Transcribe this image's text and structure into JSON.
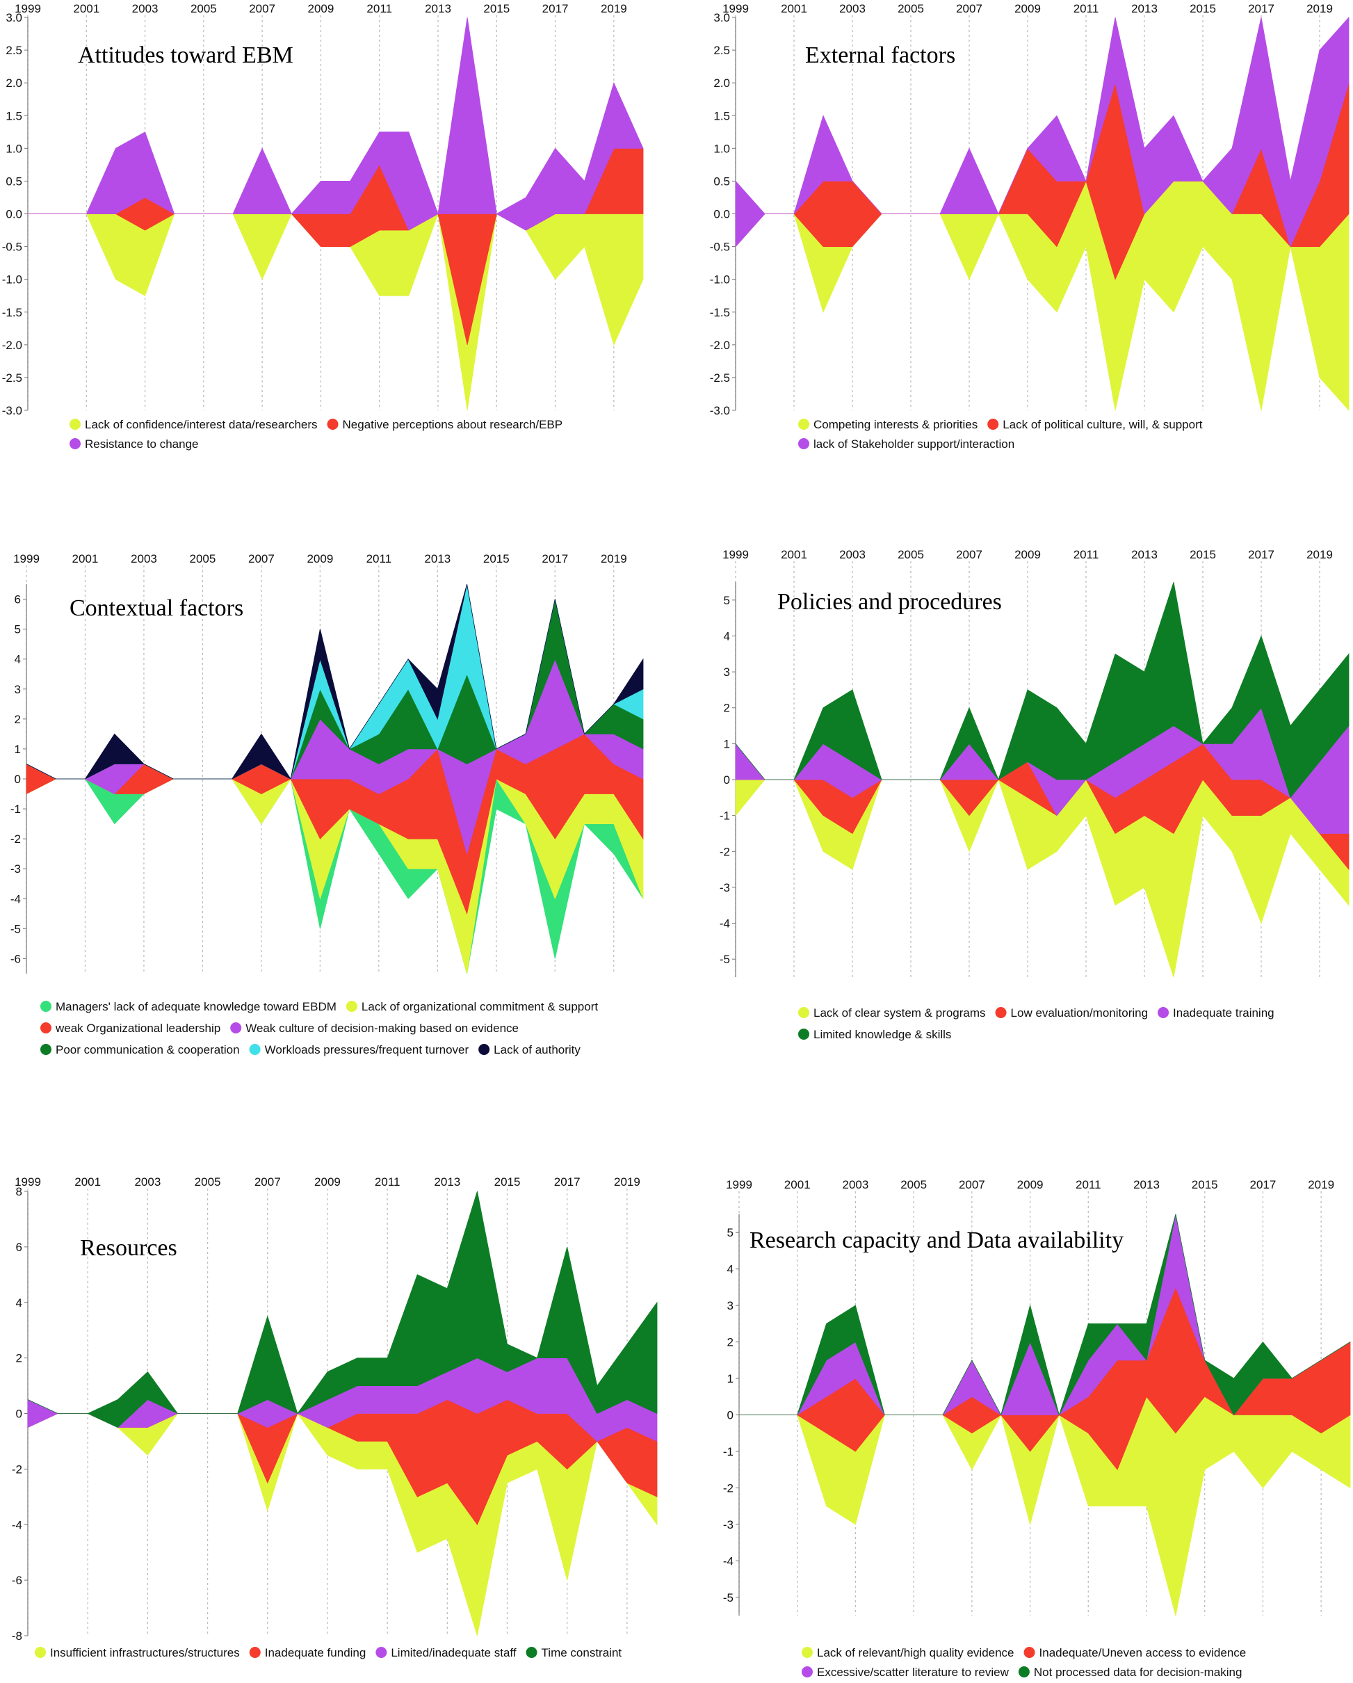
{
  "chart_data": [
    {
      "type": "area",
      "title": "Attitudes toward EBM",
      "x": [
        1999,
        2000,
        2001,
        2002,
        2003,
        2004,
        2005,
        2006,
        2007,
        2008,
        2009,
        2010,
        2011,
        2012,
        2013,
        2014,
        2015,
        2016,
        2017,
        2018,
        2019,
        2020
      ],
      "year_labels": [
        "1999",
        "2001",
        "2003",
        "2005",
        "2007",
        "2009",
        "2011",
        "2013",
        "2015",
        "2017",
        "2019"
      ],
      "ylim": [
        -3,
        3
      ],
      "y_ticks": [
        "3.0",
        "2.5",
        "2.0",
        "1.5",
        "1.0",
        "0.5",
        "0.0",
        "-0.5",
        "-1.0",
        "-1.5",
        "-2.0",
        "-2.5",
        "-3.0"
      ],
      "series": [
        {
          "name": "Lack of confidence/interest data/researchers",
          "color": "#dff53a",
          "values": [
            0,
            0,
            0,
            1,
            1,
            0,
            0,
            0,
            1,
            0,
            0,
            0,
            1,
            1,
            0,
            1,
            0,
            0,
            1,
            0.5,
            2,
            1
          ]
        },
        {
          "name": "Negative perceptions about research/EBP",
          "color": "#f43b2c",
          "values": [
            0,
            0,
            0,
            0,
            0.5,
            0,
            0,
            0,
            0,
            0,
            0.5,
            0.5,
            1,
            0,
            0,
            2,
            0,
            0,
            0,
            0,
            1,
            1
          ]
        },
        {
          "name": "Resistance to change",
          "color": "#b54ce8",
          "values": [
            0,
            0,
            0,
            1,
            1,
            0,
            0,
            0,
            1,
            0,
            0.5,
            0.5,
            0.5,
            1.5,
            0,
            3,
            0,
            0.5,
            1,
            0.5,
            1,
            0
          ]
        }
      ]
    },
    {
      "type": "area",
      "title": "External factors",
      "x": [
        1999,
        2000,
        2001,
        2002,
        2003,
        2004,
        2005,
        2006,
        2007,
        2008,
        2009,
        2010,
        2011,
        2012,
        2013,
        2014,
        2015,
        2016,
        2017,
        2018,
        2019,
        2020
      ],
      "year_labels": [
        "1999",
        "2001",
        "2003",
        "2005",
        "2007",
        "2009",
        "2011",
        "2013",
        "2015",
        "2017",
        "2019"
      ],
      "ylim": [
        -3,
        3
      ],
      "y_ticks": [
        "3.0",
        "2.5",
        "2.0",
        "1.5",
        "1.0",
        "0.5",
        "0.0",
        "-0.5",
        "-1.0",
        "-1.5",
        "-2.0",
        "-2.5",
        "-3.0"
      ],
      "series": [
        {
          "name": "Competing interests & priorities",
          "color": "#dff53a",
          "values": [
            0,
            0,
            0,
            1,
            0,
            0,
            0,
            0,
            1,
            0,
            1,
            1,
            1,
            2,
            1,
            2,
            1,
            1,
            3,
            0,
            2,
            3
          ]
        },
        {
          "name": "Lack of political culture, will, & support",
          "color": "#f43b2c",
          "values": [
            0,
            0,
            0,
            1,
            1,
            0,
            0,
            0,
            0,
            0,
            1,
            1,
            0,
            3,
            0,
            0,
            0,
            0,
            1,
            0,
            1,
            2
          ]
        },
        {
          "name": "lack of Stakeholder support/interaction",
          "color": "#b54ce8",
          "values": [
            1,
            0,
            0,
            1,
            0,
            0,
            0,
            0,
            1,
            0,
            0,
            1,
            0,
            1,
            1,
            1,
            0,
            1,
            2,
            1,
            2,
            1
          ]
        }
      ]
    },
    {
      "type": "area",
      "title": "Contextual factors",
      "x": [
        1999,
        2000,
        2001,
        2002,
        2003,
        2004,
        2005,
        2006,
        2007,
        2008,
        2009,
        2010,
        2011,
        2012,
        2013,
        2014,
        2015,
        2016,
        2017,
        2018,
        2019,
        2020
      ],
      "year_labels": [
        "1999",
        "2001",
        "2003",
        "2005",
        "2007",
        "2009",
        "2011",
        "2013",
        "2015",
        "2017",
        "2019"
      ],
      "ylim": [
        -6.5,
        6.5
      ],
      "y_ticks": [
        "6",
        "5",
        "4",
        "3",
        "2",
        "1",
        "0",
        "-1",
        "-2",
        "-3",
        "-4",
        "-5",
        "-6"
      ],
      "series": [
        {
          "name": "Managers' lack of adequate knowledge toward EBDM",
          "color": "#33e07a",
          "values": [
            0,
            0,
            0,
            1,
            0,
            0,
            0,
            0,
            0,
            0,
            1,
            0,
            1,
            1,
            0,
            0,
            1,
            0,
            2,
            0,
            1,
            0
          ]
        },
        {
          "name": "Lack of organizational commitment & support",
          "color": "#dff53a",
          "values": [
            0,
            0,
            0,
            0,
            0,
            0,
            0,
            0,
            1,
            0,
            2,
            0,
            0,
            1,
            1,
            2,
            0,
            1,
            2,
            1,
            1,
            2
          ]
        },
        {
          "name": "weak Organizational leadership",
          "color": "#f43b2c",
          "values": [
            1,
            0,
            0,
            0,
            1,
            0,
            0,
            0,
            1,
            0,
            2,
            1,
            1,
            2,
            3,
            2,
            1,
            1,
            3,
            2,
            1,
            2
          ]
        },
        {
          "name": "Weak culture of decision-making based on evidence",
          "color": "#b54ce8",
          "values": [
            0,
            0,
            0,
            1,
            0,
            0,
            0,
            0,
            0,
            0,
            2,
            1,
            1,
            1,
            0,
            3,
            0,
            1,
            3,
            0,
            1,
            1
          ]
        },
        {
          "name": "Poor communication & cooperation",
          "color": "#0c7d25",
          "values": [
            0,
            0,
            0,
            0,
            0,
            0,
            0,
            0,
            0,
            0,
            1,
            0,
            1,
            2,
            0,
            3,
            0,
            0,
            2,
            0,
            1,
            1
          ]
        },
        {
          "name": "Workloads pressures/frequent turnover",
          "color": "#3fe0e8",
          "values": [
            0,
            0,
            0,
            0,
            0,
            0,
            0,
            0,
            0,
            0,
            1,
            0,
            1,
            1,
            1,
            3,
            0,
            0,
            0,
            0,
            0,
            1
          ]
        },
        {
          "name": "Lack of authority",
          "color": "#0b0c3a",
          "values": [
            0,
            0,
            0,
            1,
            0,
            0,
            0,
            0,
            1,
            0,
            1,
            0,
            0,
            0,
            1,
            0,
            0,
            0,
            0,
            0,
            0,
            1
          ]
        }
      ]
    },
    {
      "type": "area",
      "title": "Policies and procedures",
      "x": [
        1999,
        2000,
        2001,
        2002,
        2003,
        2004,
        2005,
        2006,
        2007,
        2008,
        2009,
        2010,
        2011,
        2012,
        2013,
        2014,
        2015,
        2016,
        2017,
        2018,
        2019,
        2020
      ],
      "year_labels": [
        "1999",
        "2001",
        "2003",
        "2005",
        "2007",
        "2009",
        "2011",
        "2013",
        "2015",
        "2017",
        "2019"
      ],
      "ylim": [
        -5.5,
        5.5
      ],
      "y_ticks": [
        "5",
        "4",
        "3",
        "2",
        "1",
        "0",
        "-1",
        "-2",
        "-3",
        "-4",
        "-5"
      ],
      "series": [
        {
          "name": "Lack of clear system & programs",
          "color": "#dff53a",
          "values": [
            1,
            0,
            0,
            1,
            1,
            0,
            0,
            0,
            1,
            0,
            2,
            1,
            1,
            2,
            2,
            4,
            1,
            1,
            3,
            1,
            1,
            1
          ]
        },
        {
          "name": "Low evaluation/monitoring",
          "color": "#f43b2c",
          "values": [
            0,
            0,
            0,
            1,
            1,
            0,
            0,
            0,
            1,
            0,
            1,
            0,
            0,
            1,
            1,
            2,
            1,
            1,
            1,
            0,
            0,
            1
          ]
        },
        {
          "name": "Inadequate training",
          "color": "#b54ce8",
          "values": [
            1,
            0,
            0,
            1,
            1,
            0,
            0,
            0,
            1,
            0,
            0,
            1,
            0,
            1,
            1,
            1,
            0,
            1,
            2,
            0,
            2,
            3
          ]
        },
        {
          "name": "Limited knowledge & skills",
          "color": "#0c7d25",
          "values": [
            0,
            0,
            0,
            1,
            2,
            0,
            0,
            0,
            1,
            0,
            2,
            2,
            1,
            3,
            2,
            4,
            0,
            1,
            2,
            2,
            2,
            2
          ]
        }
      ]
    },
    {
      "type": "area",
      "title": "Resources",
      "x": [
        1999,
        2000,
        2001,
        2002,
        2003,
        2004,
        2005,
        2006,
        2007,
        2008,
        2009,
        2010,
        2011,
        2012,
        2013,
        2014,
        2015,
        2016,
        2017,
        2018,
        2019,
        2020
      ],
      "year_labels": [
        "1999",
        "2001",
        "2003",
        "2005",
        "2007",
        "2009",
        "2011",
        "2013",
        "2015",
        "2017",
        "2019"
      ],
      "ylim": [
        -8,
        8
      ],
      "y_ticks": [
        "8",
        "6",
        "4",
        "2",
        "0",
        "-2",
        "-4",
        "-6",
        "-8"
      ],
      "series": [
        {
          "name": "Insufficient infrastructures/structures",
          "color": "#dff53a",
          "values": [
            0,
            0,
            0,
            0,
            1,
            0,
            0,
            0,
            1,
            0,
            1,
            1,
            1,
            2,
            2,
            4,
            1,
            1,
            4,
            0,
            0,
            1
          ]
        },
        {
          "name": "Inadequate funding",
          "color": "#f43b2c",
          "values": [
            0,
            0,
            0,
            0,
            0,
            0,
            0,
            0,
            2,
            0,
            0,
            1,
            1,
            3,
            3,
            4,
            2,
            1,
            2,
            0,
            2,
            2
          ]
        },
        {
          "name": "Limited/inadequate staff",
          "color": "#b54ce8",
          "values": [
            1,
            0,
            0,
            0,
            1,
            0,
            0,
            0,
            1,
            0,
            1,
            1,
            1,
            1,
            1,
            2,
            1,
            2,
            2,
            1,
            1,
            1
          ]
        },
        {
          "name": "Time constraint",
          "color": "#0c7d25",
          "values": [
            0,
            0,
            0,
            1,
            1,
            0,
            0,
            0,
            3,
            0,
            1,
            1,
            1,
            4,
            3,
            6,
            1,
            0,
            4,
            1,
            2,
            4
          ]
        }
      ]
    },
    {
      "type": "area",
      "title": "Research capacity and Data availability",
      "x": [
        1999,
        2000,
        2001,
        2002,
        2003,
        2004,
        2005,
        2006,
        2007,
        2008,
        2009,
        2010,
        2011,
        2012,
        2013,
        2014,
        2015,
        2016,
        2017,
        2018,
        2019,
        2020
      ],
      "year_labels": [
        "1999",
        "2001",
        "2003",
        "2005",
        "2007",
        "2009",
        "2011",
        "2013",
        "2015",
        "2017",
        "2019"
      ],
      "ylim": [
        -5.5,
        5.5
      ],
      "y_ticks": [
        "5",
        "4",
        "3",
        "2",
        "1",
        "0",
        "-1",
        "-2",
        "-3",
        "-4",
        "-5"
      ],
      "series": [
        {
          "name": "Lack of relevant/high quality evidence",
          "color": "#dff53a",
          "values": [
            0,
            0,
            0,
            2,
            2,
            0,
            0,
            0,
            1,
            0,
            2,
            0,
            2,
            1,
            3,
            5,
            2,
            1,
            2,
            1,
            1,
            2
          ]
        },
        {
          "name": "Inadequate/Uneven access to evidence",
          "color": "#f43b2c",
          "values": [
            0,
            0,
            0,
            1,
            2,
            0,
            0,
            0,
            1,
            0,
            1,
            0,
            1,
            3,
            1,
            4,
            1,
            0,
            1,
            1,
            2,
            2
          ]
        },
        {
          "name": "Excessive/scatter literature to review",
          "color": "#b54ce8",
          "values": [
            0,
            0,
            0,
            1,
            1,
            0,
            0,
            0,
            1,
            0,
            2,
            0,
            1,
            1,
            0,
            2,
            0,
            0,
            0,
            0,
            0,
            0
          ]
        },
        {
          "name": "Not processed data for decision-making",
          "color": "#0c7d25",
          "values": [
            0,
            0,
            0,
            1,
            1,
            0,
            0,
            0,
            0,
            0,
            1,
            0,
            1,
            0,
            1,
            0,
            0,
            1,
            1,
            0,
            0,
            0
          ]
        }
      ]
    }
  ]
}
